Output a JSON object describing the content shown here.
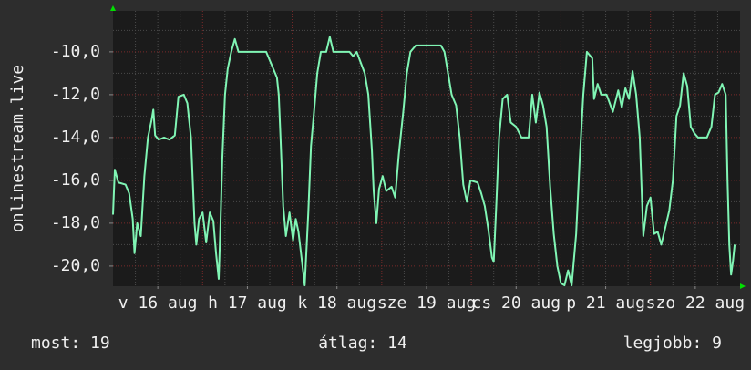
{
  "chart_data": {
    "type": "line",
    "y_label": "onlinestream.live",
    "xlim": [
      0,
      7
    ],
    "ylim": [
      -20.94,
      -8.09
    ],
    "yticks": [
      {
        "value": -10,
        "label": "-10,0"
      },
      {
        "value": -12,
        "label": "-12,0"
      },
      {
        "value": -14,
        "label": "-14,0"
      },
      {
        "value": -16,
        "label": "-16,0"
      },
      {
        "value": -18,
        "label": "-18,0"
      },
      {
        "value": -20,
        "label": "-20,0"
      }
    ],
    "xticks": [
      {
        "value": 0.5,
        "label": "v 16 aug"
      },
      {
        "value": 1.5,
        "label": "h 17 aug"
      },
      {
        "value": 2.5,
        "label": "k 18 aug"
      },
      {
        "value": 3.5,
        "label": "sze 19 aug"
      },
      {
        "value": 4.5,
        "label": "cs 20 aug"
      },
      {
        "value": 5.5,
        "label": "p 21 aug"
      },
      {
        "value": 6.5,
        "label": "szo 22 aug"
      }
    ],
    "grid": true,
    "series": [
      {
        "color": "#80f5b4",
        "x": [
          0.0,
          0.02,
          0.06,
          0.14,
          0.18,
          0.22,
          0.24,
          0.27,
          0.31,
          0.35,
          0.39,
          0.43,
          0.45,
          0.47,
          0.51,
          0.57,
          0.63,
          0.69,
          0.73,
          0.79,
          0.83,
          0.87,
          0.91,
          0.93,
          0.96,
          1.0,
          1.04,
          1.08,
          1.12,
          1.15,
          1.18,
          1.2,
          1.22,
          1.25,
          1.28,
          1.32,
          1.36,
          1.4,
          1.59,
          1.71,
          1.77,
          1.83,
          1.85,
          1.87,
          1.9,
          1.93,
          1.97,
          2.01,
          2.04,
          2.07,
          2.11,
          2.14,
          2.18,
          2.21,
          2.24,
          2.28,
          2.32,
          2.38,
          2.42,
          2.46,
          2.64,
          2.68,
          2.72,
          2.81,
          2.85,
          2.89,
          2.91,
          2.94,
          2.97,
          3.01,
          3.05,
          3.11,
          3.15,
          3.19,
          3.24,
          3.28,
          3.32,
          3.38,
          3.66,
          3.7,
          3.74,
          3.78,
          3.83,
          3.87,
          3.91,
          3.95,
          3.99,
          4.07,
          4.11,
          4.15,
          4.19,
          4.23,
          4.25,
          4.28,
          4.31,
          4.35,
          4.4,
          4.44,
          4.5,
          4.56,
          4.64,
          4.68,
          4.72,
          4.76,
          4.8,
          4.84,
          4.88,
          4.92,
          4.96,
          5.0,
          5.04,
          5.08,
          5.12,
          5.17,
          5.21,
          5.25,
          5.29,
          5.35,
          5.37,
          5.41,
          5.45,
          5.51,
          5.58,
          5.64,
          5.68,
          5.72,
          5.76,
          5.8,
          5.84,
          5.88,
          5.92,
          5.96,
          6.0,
          6.04,
          6.08,
          6.12,
          6.16,
          6.21,
          6.25,
          6.29,
          6.33,
          6.37,
          6.41,
          6.45,
          6.49,
          6.53,
          6.63,
          6.68,
          6.72,
          6.76,
          6.8,
          6.84,
          6.86,
          6.88,
          6.9,
          6.92,
          6.94
        ],
        "values": [
          -17.6,
          -15.5,
          -16.1,
          -16.2,
          -16.6,
          -17.8,
          -19.4,
          -18.0,
          -18.6,
          -15.8,
          -14.0,
          -13.2,
          -12.7,
          -13.9,
          -14.1,
          -14.0,
          -14.1,
          -13.9,
          -12.1,
          -12.0,
          -12.4,
          -14.0,
          -18.0,
          -19.0,
          -17.8,
          -17.5,
          -18.9,
          -17.5,
          -17.9,
          -19.4,
          -20.6,
          -18.0,
          -15.0,
          -12.0,
          -10.8,
          -10.0,
          -9.4,
          -10.0,
          -10.0,
          -10.0,
          -10.6,
          -11.2,
          -12.0,
          -14.0,
          -17.2,
          -18.6,
          -17.5,
          -18.8,
          -17.8,
          -18.4,
          -19.8,
          -20.9,
          -17.5,
          -14.4,
          -13.0,
          -11.0,
          -10.0,
          -10.0,
          -9.3,
          -10.0,
          -10.0,
          -10.2,
          -10.0,
          -11.0,
          -12.0,
          -14.6,
          -16.5,
          -18.0,
          -16.4,
          -15.8,
          -16.5,
          -16.3,
          -16.8,
          -14.8,
          -12.8,
          -11.0,
          -10.0,
          -9.7,
          -9.7,
          -10.0,
          -11.0,
          -12.0,
          -12.5,
          -14.0,
          -16.2,
          -17.0,
          -16.0,
          -16.1,
          -16.6,
          -17.2,
          -18.3,
          -19.6,
          -19.8,
          -17.0,
          -14.0,
          -12.2,
          -12.0,
          -13.3,
          -13.5,
          -14.0,
          -14.0,
          -12.0,
          -13.3,
          -11.9,
          -12.5,
          -13.5,
          -16.3,
          -18.5,
          -20.0,
          -20.8,
          -20.9,
          -20.2,
          -20.9,
          -18.5,
          -15.0,
          -12.0,
          -10.0,
          -10.3,
          -12.2,
          -11.5,
          -12.0,
          -12.0,
          -12.8,
          -11.8,
          -12.6,
          -11.7,
          -12.2,
          -10.9,
          -12.0,
          -14.0,
          -18.6,
          -17.2,
          -16.8,
          -18.5,
          -18.4,
          -19.0,
          -18.3,
          -17.4,
          -16.0,
          -13.0,
          -12.5,
          -11.0,
          -11.6,
          -13.5,
          -13.8,
          -14.0,
          -14.0,
          -13.5,
          -12.0,
          -11.9,
          -11.5,
          -12.0,
          -16.0,
          -19.0,
          -20.4,
          -19.8,
          -19.0
        ]
      }
    ],
    "footer": [
      "most: 19",
      "átlag: 14",
      "legjobb: 9"
    ]
  }
}
